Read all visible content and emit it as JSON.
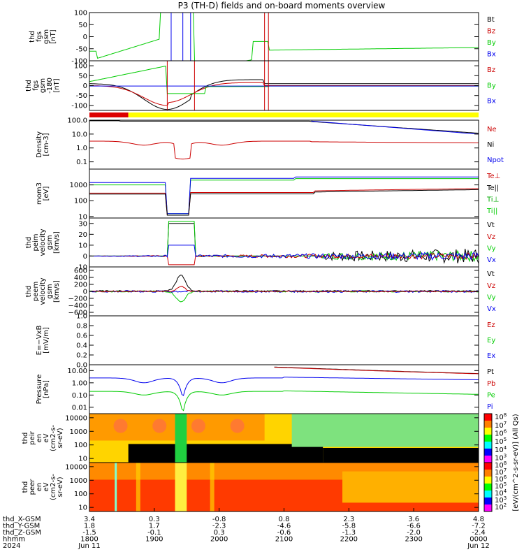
{
  "title": "P3 (TH-D) fields and on-board moments overview",
  "chart_data": {
    "type": "line",
    "title": "P3 (TH-D) fields and on-board moments overview",
    "x_axis": {
      "row_labels": [
        "thd_X-GSM",
        "thd_Y-GSM",
        "thd_Z-GSM",
        "hhmm",
        "2024"
      ],
      "ticks": [
        {
          "x": "3.4",
          "y": "1.8",
          "z": "-1.5",
          "hhmm": "1800",
          "date": "Jun 11"
        },
        {
          "x": "0.3",
          "y": "1.7",
          "z": "-0.1",
          "hhmm": "1900",
          "date": ""
        },
        {
          "x": "-0.8",
          "y": "-2.3",
          "z": "0.3",
          "hhmm": "2000",
          "date": ""
        },
        {
          "x": "0.8",
          "y": "-4.6",
          "z": "-0.6",
          "hhmm": "2100",
          "date": ""
        },
        {
          "x": "2.3",
          "y": "-5.8",
          "z": "-1.3",
          "hhmm": "2200",
          "date": ""
        },
        {
          "x": "3.6",
          "y": "-6.6",
          "z": "-2.0",
          "hhmm": "2300",
          "date": ""
        },
        {
          "x": "4.8",
          "y": "-7.2",
          "z": "-2.4",
          "hhmm": "0000",
          "date": "Jun 12"
        }
      ]
    },
    "panels": [
      {
        "id": "fgs_gsm",
        "ylabel": [
          "thd",
          "fgs",
          "gsm",
          "[nT]"
        ],
        "yticks": [
          "100",
          "50",
          "0",
          "-50",
          "-100"
        ],
        "ylim": [
          -100,
          100
        ],
        "scale": "linear",
        "legend": [
          {
            "label": "Bt",
            "color": "#000000"
          },
          {
            "label": "Bz",
            "color": "#cc0000"
          },
          {
            "label": "By",
            "color": "#00cc00"
          },
          {
            "label": "Bx",
            "color": "#0000ee"
          }
        ]
      },
      {
        "id": "fgs_gsm_dc",
        "ylabel": [
          "thd",
          "fgs",
          "gsm",
          "-180",
          "[nT]"
        ],
        "yticks": [
          "100",
          "50",
          "0",
          "-50",
          "-100"
        ],
        "ylim": [
          -125,
          125
        ],
        "scale": "linear",
        "legend": [
          {
            "label": "Bz",
            "color": "#cc0000"
          },
          {
            "label": "By",
            "color": "#00cc00"
          },
          {
            "label": "Bx",
            "color": "#0000ee"
          }
        ]
      },
      {
        "id": "density",
        "ylabel": [
          "Density",
          "[cm-3]"
        ],
        "yticks": [
          "100.0",
          "10.0",
          "1.0",
          "0.1"
        ],
        "ylim": [
          0.03,
          100
        ],
        "scale": "log",
        "legend": [
          {
            "label": "Ne",
            "color": "#cc0000"
          },
          {
            "label": "Ni",
            "color": "#000000"
          },
          {
            "label": "Npot",
            "color": "#0000ee"
          }
        ]
      },
      {
        "id": "temps",
        "ylabel": [
          "mom3",
          "[eV]"
        ],
        "yticks": [
          "1000",
          "100",
          "10"
        ],
        "ylim": [
          8,
          10000
        ],
        "scale": "log",
        "legend": [
          {
            "label": "Te⊥",
            "color": "#cc0000"
          },
          {
            "label": "Te||",
            "color": "#000000"
          },
          {
            "label": "Ti⊥",
            "color": "#00aa00"
          },
          {
            "label": "Ti||",
            "color": "#00cc00"
          }
        ]
      },
      {
        "id": "peim_vel",
        "ylabel": [
          "thd",
          "peim",
          "velocity",
          "gsm",
          "[km/s]"
        ],
        "yticks": [
          "30",
          "20",
          "10",
          "0",
          "-10"
        ],
        "ylim": [
          -10,
          35
        ],
        "scale": "linear",
        "legend": [
          {
            "label": "Vt",
            "color": "#000000"
          },
          {
            "label": "Vz",
            "color": "#cc0000"
          },
          {
            "label": "Vy",
            "color": "#00cc00"
          },
          {
            "label": "Vx",
            "color": "#0000ee"
          }
        ]
      },
      {
        "id": "peem_vel",
        "ylabel": [
          "thd",
          "peem",
          "velocity",
          "gsm",
          "[km/s]"
        ],
        "yticks": [
          "600",
          "400",
          "200",
          "0",
          "−200",
          "−400",
          "−600"
        ],
        "ylim": [
          -700,
          700
        ],
        "scale": "linear",
        "legend": [
          {
            "label": "Vt",
            "color": "#000000"
          },
          {
            "label": "Vz",
            "color": "#cc0000"
          },
          {
            "label": "Vy",
            "color": "#00cc00"
          },
          {
            "label": "Vx",
            "color": "#0000ee"
          }
        ]
      },
      {
        "id": "efield",
        "ylabel": [
          "E=−VxB",
          "[mV/m]"
        ],
        "yticks": [
          "1.0",
          "0.8",
          "0.6",
          "0.4",
          "0.2",
          "0.0"
        ],
        "ylim": [
          0,
          1
        ],
        "scale": "linear",
        "legend": [
          {
            "label": "Ez",
            "color": "#cc0000"
          },
          {
            "label": "Ey",
            "color": "#00cc00"
          },
          {
            "label": "Ex",
            "color": "#0000ee"
          }
        ]
      },
      {
        "id": "pressure",
        "ylabel": [
          "Pressure",
          "[nPa]"
        ],
        "yticks": [
          "10.00",
          "1.00",
          "0.10",
          "0.01"
        ],
        "ylim": [
          0.003,
          30
        ],
        "scale": "log",
        "legend": [
          {
            "label": "Pt",
            "color": "#000000"
          },
          {
            "label": "Pb",
            "color": "#cc0000"
          },
          {
            "label": "Pe",
            "color": "#00cc00"
          },
          {
            "label": "Pi",
            "color": "#0000ee"
          }
        ]
      },
      {
        "id": "peir",
        "ylabel": [
          "thd",
          "peir",
          "en",
          "eV",
          "(cm2-s-",
          "sr-eV)"
        ],
        "yticks": [
          "10000",
          "1000",
          "100",
          "10"
        ],
        "ylim": [
          5,
          20000
        ],
        "scale": "log",
        "spectrogram": true
      },
      {
        "id": "peer",
        "ylabel": [
          "thd",
          "peer",
          "en",
          "eV",
          "(cm2-s-",
          "sr-eV)"
        ],
        "yticks": [
          "10000",
          "1000",
          "100",
          "10"
        ],
        "ylim": [
          5,
          20000
        ],
        "scale": "log",
        "spectrogram": true
      }
    ],
    "colorbar": {
      "label": "[eV/(cm^2-s-sr-eV)] (All Qs)",
      "ion_ticks": [
        "10^8",
        "10^7",
        "10^6",
        "10^5",
        "10^4",
        "10^3"
      ],
      "elec_ticks": [
        "10^8",
        "10^7",
        "10^6",
        "10^5",
        "10^4",
        "10^3",
        "10^2"
      ]
    },
    "quality_bar": [
      {
        "color": "#dd0000",
        "from": 0.0,
        "to": 0.1
      },
      {
        "color": "#ffff00",
        "from": 0.1,
        "to": 1.0
      }
    ]
  }
}
